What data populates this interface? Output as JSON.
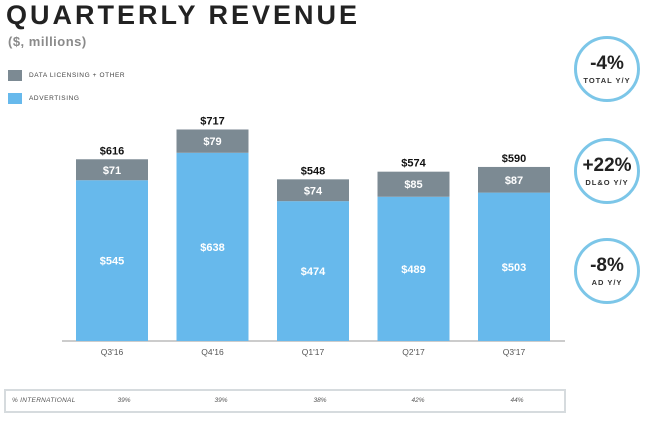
{
  "title": "QUARTERLY REVENUE",
  "subtitle": "($, millions)",
  "colors": {
    "advertising": "#67b9ec",
    "dlo": "#7c8a93",
    "axis": "#999999",
    "kpi_border": "#7cc6e8"
  },
  "legend": [
    {
      "label": "DATA LICENSING + OTHER",
      "color": "#7c8a93"
    },
    {
      "label": "ADVERTISING",
      "color": "#67b9ec"
    }
  ],
  "chart_data": {
    "type": "bar",
    "stacked": true,
    "categories": [
      "Q3'16",
      "Q4'16",
      "Q1'17",
      "Q2'17",
      "Q3'17"
    ],
    "series": [
      {
        "name": "ADVERTISING",
        "values": [
          545,
          638,
          474,
          489,
          503
        ],
        "labels": [
          "$545",
          "$638",
          "$474",
          "$489",
          "$503"
        ]
      },
      {
        "name": "DATA LICENSING + OTHER",
        "values": [
          71,
          79,
          74,
          85,
          87
        ],
        "labels": [
          "$71",
          "$79",
          "$74",
          "$85",
          "$87"
        ]
      }
    ],
    "totals": [
      616,
      717,
      548,
      574,
      590
    ],
    "total_labels": [
      "$616",
      "$717",
      "$548",
      "$574",
      "$590"
    ],
    "ylim": [
      0,
      750
    ]
  },
  "kpis": [
    {
      "value": "-4%",
      "label": "TOTAL Y/Y"
    },
    {
      "value": "+22%",
      "label": "DL&O Y/Y"
    },
    {
      "value": "-8%",
      "label": "AD Y/Y"
    }
  ],
  "international": {
    "label": "% INTERNATIONAL",
    "values": [
      "39%",
      "39%",
      "38%",
      "42%",
      "44%"
    ]
  }
}
